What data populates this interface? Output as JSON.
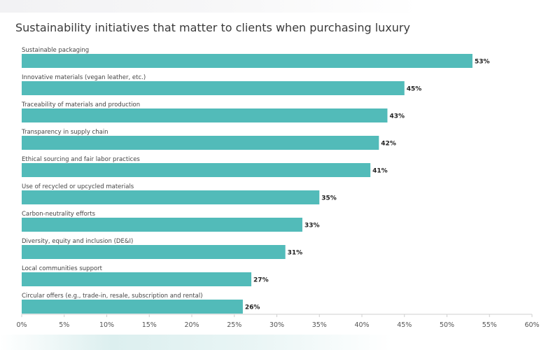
{
  "chart_data": {
    "type": "bar",
    "orientation": "horizontal",
    "title": "Sustainability initiatives that matter to clients when purchasing luxury",
    "categories": [
      "Sustainable packaging",
      "Innovative materials (vegan leather, etc.)",
      "Traceability of materials and production",
      "Transparency in supply chain",
      "Ethical sourcing and fair labor practices",
      "Use of recycled or upcycled materials",
      "Carbon-neutrality efforts",
      "Diversity, equity and inclusion (DE&I)",
      "Local communities support",
      "Circular offers (e.g., trade-in, resale, subscription and rental)"
    ],
    "values": [
      53,
      45,
      43,
      42,
      41,
      35,
      33,
      31,
      27,
      26
    ],
    "value_labels": [
      "53%",
      "45%",
      "43%",
      "42%",
      "41%",
      "35%",
      "33%",
      "31%",
      "27%",
      "26%"
    ],
    "xlim": [
      0,
      60
    ],
    "xticks": [
      0,
      5,
      10,
      15,
      20,
      25,
      30,
      35,
      40,
      45,
      50,
      55,
      60
    ],
    "xtick_labels": [
      "0%",
      "5%",
      "10%",
      "15%",
      "20%",
      "25%",
      "30%",
      "35%",
      "40%",
      "45%",
      "50%",
      "55%",
      "60%"
    ],
    "xlabel": "",
    "ylabel": "",
    "grid": false,
    "bar_color": "#52bbb9"
  }
}
